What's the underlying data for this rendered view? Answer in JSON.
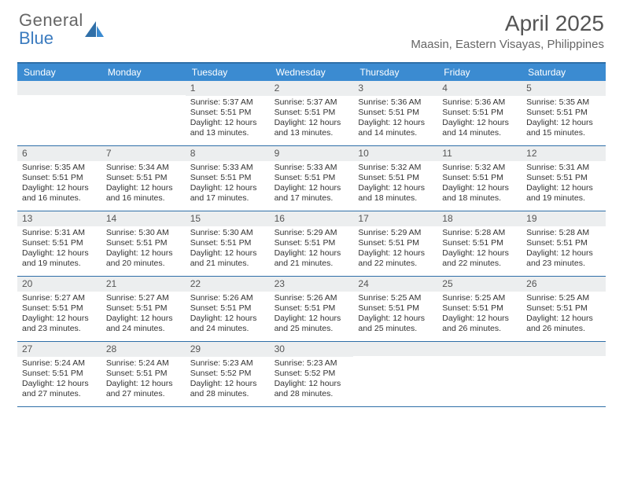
{
  "logo": {
    "line1": "General",
    "line2": "Blue"
  },
  "title": "April 2025",
  "location": "Maasin, Eastern Visayas, Philippines",
  "colors": {
    "header_bg": "#3b8bd1",
    "border": "#2f6fa8",
    "numrow_bg": "#eceeef",
    "text": "#333333",
    "logo_gray": "#666666",
    "logo_blue": "#3b7bbf"
  },
  "dayNames": [
    "Sunday",
    "Monday",
    "Tuesday",
    "Wednesday",
    "Thursday",
    "Friday",
    "Saturday"
  ],
  "weeks": [
    [
      {
        "n": "",
        "sr": "",
        "ss": "",
        "d": ""
      },
      {
        "n": "",
        "sr": "",
        "ss": "",
        "d": ""
      },
      {
        "n": "1",
        "sr": "5:37 AM",
        "ss": "5:51 PM",
        "d": "12 hours and 13 minutes."
      },
      {
        "n": "2",
        "sr": "5:37 AM",
        "ss": "5:51 PM",
        "d": "12 hours and 13 minutes."
      },
      {
        "n": "3",
        "sr": "5:36 AM",
        "ss": "5:51 PM",
        "d": "12 hours and 14 minutes."
      },
      {
        "n": "4",
        "sr": "5:36 AM",
        "ss": "5:51 PM",
        "d": "12 hours and 14 minutes."
      },
      {
        "n": "5",
        "sr": "5:35 AM",
        "ss": "5:51 PM",
        "d": "12 hours and 15 minutes."
      }
    ],
    [
      {
        "n": "6",
        "sr": "5:35 AM",
        "ss": "5:51 PM",
        "d": "12 hours and 16 minutes."
      },
      {
        "n": "7",
        "sr": "5:34 AM",
        "ss": "5:51 PM",
        "d": "12 hours and 16 minutes."
      },
      {
        "n": "8",
        "sr": "5:33 AM",
        "ss": "5:51 PM",
        "d": "12 hours and 17 minutes."
      },
      {
        "n": "9",
        "sr": "5:33 AM",
        "ss": "5:51 PM",
        "d": "12 hours and 17 minutes."
      },
      {
        "n": "10",
        "sr": "5:32 AM",
        "ss": "5:51 PM",
        "d": "12 hours and 18 minutes."
      },
      {
        "n": "11",
        "sr": "5:32 AM",
        "ss": "5:51 PM",
        "d": "12 hours and 18 minutes."
      },
      {
        "n": "12",
        "sr": "5:31 AM",
        "ss": "5:51 PM",
        "d": "12 hours and 19 minutes."
      }
    ],
    [
      {
        "n": "13",
        "sr": "5:31 AM",
        "ss": "5:51 PM",
        "d": "12 hours and 19 minutes."
      },
      {
        "n": "14",
        "sr": "5:30 AM",
        "ss": "5:51 PM",
        "d": "12 hours and 20 minutes."
      },
      {
        "n": "15",
        "sr": "5:30 AM",
        "ss": "5:51 PM",
        "d": "12 hours and 21 minutes."
      },
      {
        "n": "16",
        "sr": "5:29 AM",
        "ss": "5:51 PM",
        "d": "12 hours and 21 minutes."
      },
      {
        "n": "17",
        "sr": "5:29 AM",
        "ss": "5:51 PM",
        "d": "12 hours and 22 minutes."
      },
      {
        "n": "18",
        "sr": "5:28 AM",
        "ss": "5:51 PM",
        "d": "12 hours and 22 minutes."
      },
      {
        "n": "19",
        "sr": "5:28 AM",
        "ss": "5:51 PM",
        "d": "12 hours and 23 minutes."
      }
    ],
    [
      {
        "n": "20",
        "sr": "5:27 AM",
        "ss": "5:51 PM",
        "d": "12 hours and 23 minutes."
      },
      {
        "n": "21",
        "sr": "5:27 AM",
        "ss": "5:51 PM",
        "d": "12 hours and 24 minutes."
      },
      {
        "n": "22",
        "sr": "5:26 AM",
        "ss": "5:51 PM",
        "d": "12 hours and 24 minutes."
      },
      {
        "n": "23",
        "sr": "5:26 AM",
        "ss": "5:51 PM",
        "d": "12 hours and 25 minutes."
      },
      {
        "n": "24",
        "sr": "5:25 AM",
        "ss": "5:51 PM",
        "d": "12 hours and 25 minutes."
      },
      {
        "n": "25",
        "sr": "5:25 AM",
        "ss": "5:51 PM",
        "d": "12 hours and 26 minutes."
      },
      {
        "n": "26",
        "sr": "5:25 AM",
        "ss": "5:51 PM",
        "d": "12 hours and 26 minutes."
      }
    ],
    [
      {
        "n": "27",
        "sr": "5:24 AM",
        "ss": "5:51 PM",
        "d": "12 hours and 27 minutes."
      },
      {
        "n": "28",
        "sr": "5:24 AM",
        "ss": "5:51 PM",
        "d": "12 hours and 27 minutes."
      },
      {
        "n": "29",
        "sr": "5:23 AM",
        "ss": "5:52 PM",
        "d": "12 hours and 28 minutes."
      },
      {
        "n": "30",
        "sr": "5:23 AM",
        "ss": "5:52 PM",
        "d": "12 hours and 28 minutes."
      },
      {
        "n": "",
        "sr": "",
        "ss": "",
        "d": ""
      },
      {
        "n": "",
        "sr": "",
        "ss": "",
        "d": ""
      },
      {
        "n": "",
        "sr": "",
        "ss": "",
        "d": ""
      }
    ]
  ],
  "labels": {
    "sunrise": "Sunrise:",
    "sunset": "Sunset:",
    "daylight": "Daylight:"
  }
}
